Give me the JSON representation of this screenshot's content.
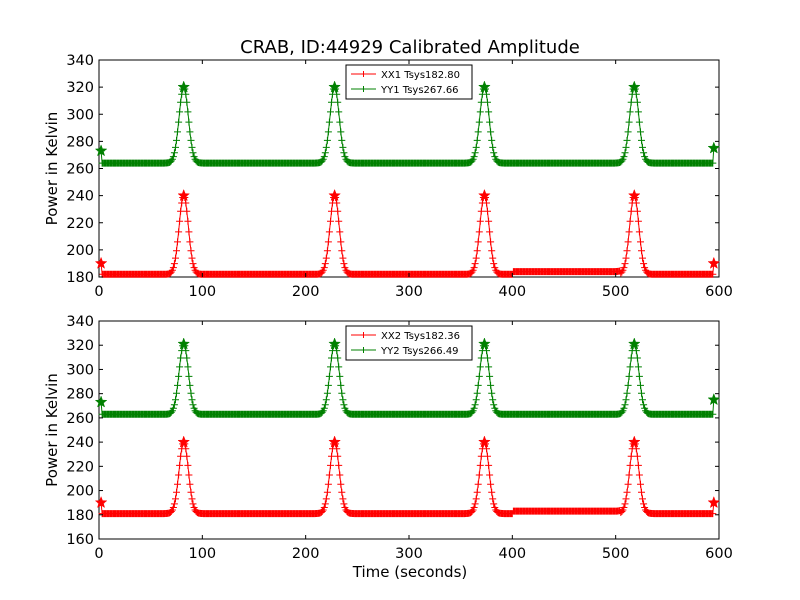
{
  "figure": {
    "title": "CRAB, ID:44929 Calibrated Amplitude",
    "xlabel": "Time (seconds)"
  },
  "chart_data": [
    {
      "type": "line",
      "ylabel": "Power in Kelvin",
      "xlim": [
        0,
        600
      ],
      "ylim": [
        180,
        340
      ],
      "xticks": [
        0,
        100,
        200,
        300,
        400,
        500,
        600
      ],
      "yticks": [
        180,
        200,
        220,
        240,
        260,
        280,
        300,
        320,
        340
      ],
      "legend_position": "top-center",
      "grid": false,
      "marker": "+",
      "series": [
        {
          "name": "XX1 Tsys182.80",
          "color": "#ff0000",
          "baseline": 182,
          "peak": 240,
          "edge_start": 190,
          "edge_end": 190
        },
        {
          "name": "YY1 Tsys267.66",
          "color": "#008000",
          "baseline": 264,
          "peak": 320,
          "edge_start": 273,
          "edge_end": 275
        }
      ]
    },
    {
      "type": "line",
      "ylabel": "Power in Kelvin",
      "xlim": [
        0,
        600
      ],
      "ylim": [
        160,
        340
      ],
      "xticks": [
        0,
        100,
        200,
        300,
        400,
        500,
        600
      ],
      "yticks": [
        160,
        180,
        200,
        220,
        240,
        260,
        280,
        300,
        320,
        340
      ],
      "legend_position": "top-center",
      "grid": false,
      "marker": "+",
      "series": [
        {
          "name": "XX2 Tsys182.36",
          "color": "#ff0000",
          "baseline": 181,
          "peak": 240,
          "edge_start": 190,
          "edge_end": 190
        },
        {
          "name": "YY2 Tsys266.49",
          "color": "#008000",
          "baseline": 263,
          "peak": 321,
          "edge_start": 273,
          "edge_end": 275
        }
      ]
    }
  ],
  "peaks_x": [
    82,
    228,
    373,
    518
  ],
  "time_range": [
    2,
    595
  ]
}
